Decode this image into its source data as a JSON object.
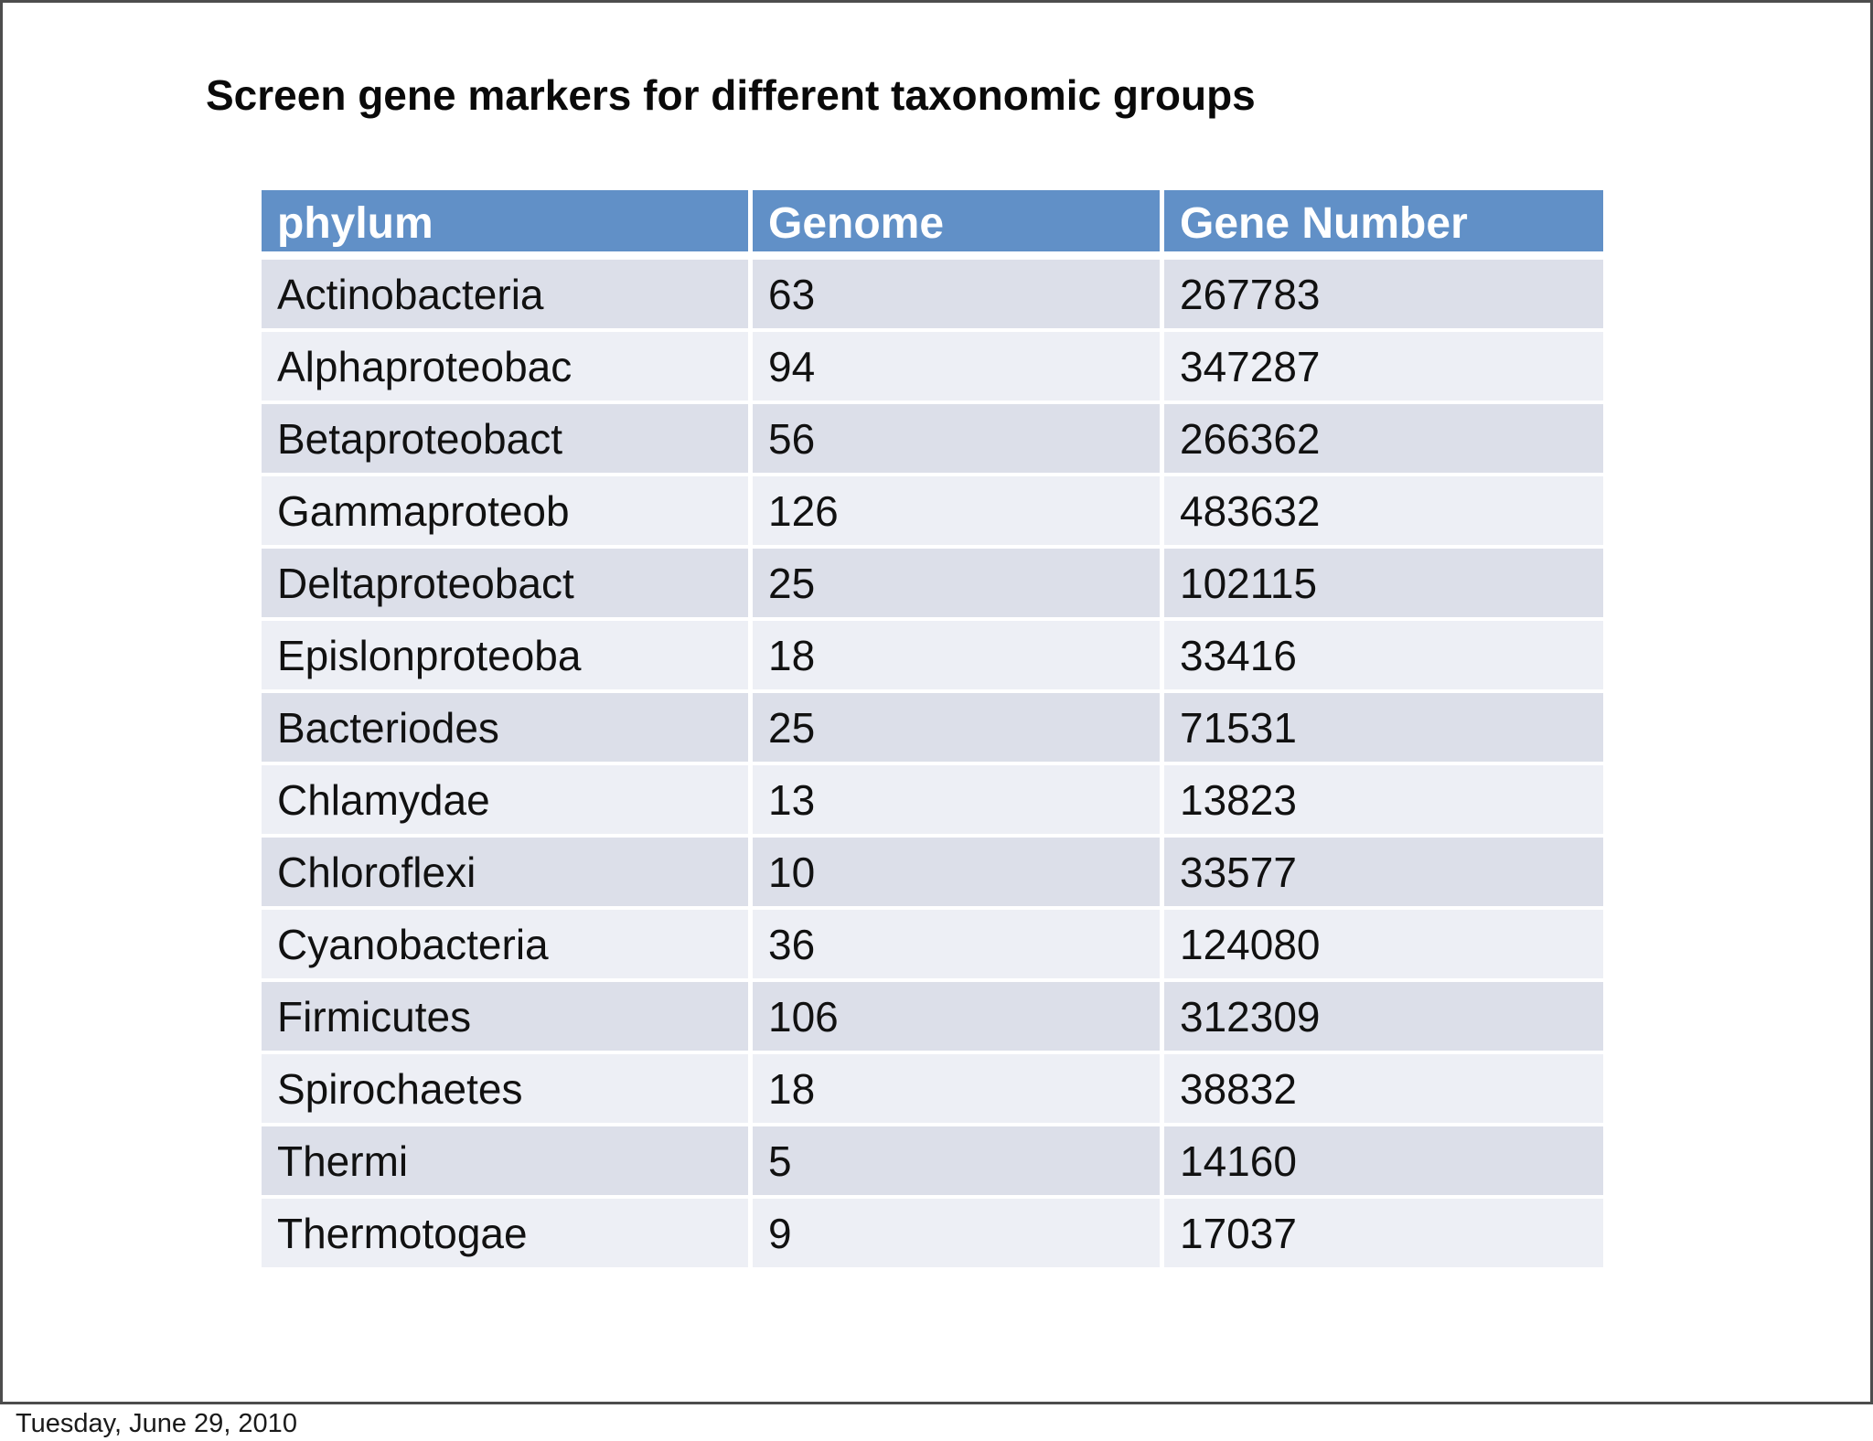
{
  "slide": {
    "title": "Screen gene markers for different taxonomic groups",
    "footer_date": "Tuesday, June 29, 2010"
  },
  "table": {
    "columns": [
      "phylum",
      "Genome",
      "Gene Number"
    ],
    "rows": [
      {
        "phylum": "Actinobacteria",
        "genome": "63",
        "gene_number": "267783"
      },
      {
        "phylum": "Alphaproteobac",
        "genome": "94",
        "gene_number": "347287"
      },
      {
        "phylum": "Betaproteobact",
        "genome": "56",
        "gene_number": "266362"
      },
      {
        "phylum": "Gammaproteob",
        "genome": "126",
        "gene_number": "483632"
      },
      {
        "phylum": "Deltaproteobact",
        "genome": "25",
        "gene_number": "102115"
      },
      {
        "phylum": "Epislonproteoba",
        "genome": "18",
        "gene_number": "33416"
      },
      {
        "phylum": "Bacteriodes",
        "genome": "25",
        "gene_number": "71531"
      },
      {
        "phylum": "Chlamydae",
        "genome": "13",
        "gene_number": "13823"
      },
      {
        "phylum": "Chloroflexi",
        "genome": "10",
        "gene_number": "33577"
      },
      {
        "phylum": "Cyanobacteria",
        "genome": "36",
        "gene_number": "124080"
      },
      {
        "phylum": "Firmicutes",
        "genome": "106",
        "gene_number": "312309"
      },
      {
        "phylum": "Spirochaetes",
        "genome": "18",
        "gene_number": "38832"
      },
      {
        "phylum": "Thermi",
        "genome": "5",
        "gene_number": "14160"
      },
      {
        "phylum": "Thermotogae",
        "genome": "9",
        "gene_number": "17037"
      }
    ]
  },
  "colors": {
    "header_bg": "#6190c7",
    "header_text": "#ffffff",
    "row_odd_bg": "#dcdfe9",
    "row_even_bg": "#edeff5",
    "cell_separator": "#ffffff",
    "body_text": "#111111",
    "slide_border": "#4d4d4d"
  },
  "chart_data": {
    "type": "table",
    "title": "Screen gene markers for different taxonomic groups",
    "columns": [
      "phylum",
      "Genome",
      "Gene Number"
    ],
    "rows": [
      [
        "Actinobacteria",
        63,
        267783
      ],
      [
        "Alphaproteobac",
        94,
        347287
      ],
      [
        "Betaproteobact",
        56,
        266362
      ],
      [
        "Gammaproteob",
        126,
        483632
      ],
      [
        "Deltaproteobact",
        25,
        102115
      ],
      [
        "Epislonproteoba",
        18,
        33416
      ],
      [
        "Bacteriodes",
        25,
        71531
      ],
      [
        "Chlamydae",
        13,
        13823
      ],
      [
        "Chloroflexi",
        10,
        33577
      ],
      [
        "Cyanobacteria",
        36,
        124080
      ],
      [
        "Firmicutes",
        106,
        312309
      ],
      [
        "Spirochaetes",
        18,
        38832
      ],
      [
        "Thermi",
        5,
        14160
      ],
      [
        "Thermotogae",
        9,
        17037
      ]
    ],
    "annotations": [
      "Tuesday, June 29, 2010"
    ]
  }
}
